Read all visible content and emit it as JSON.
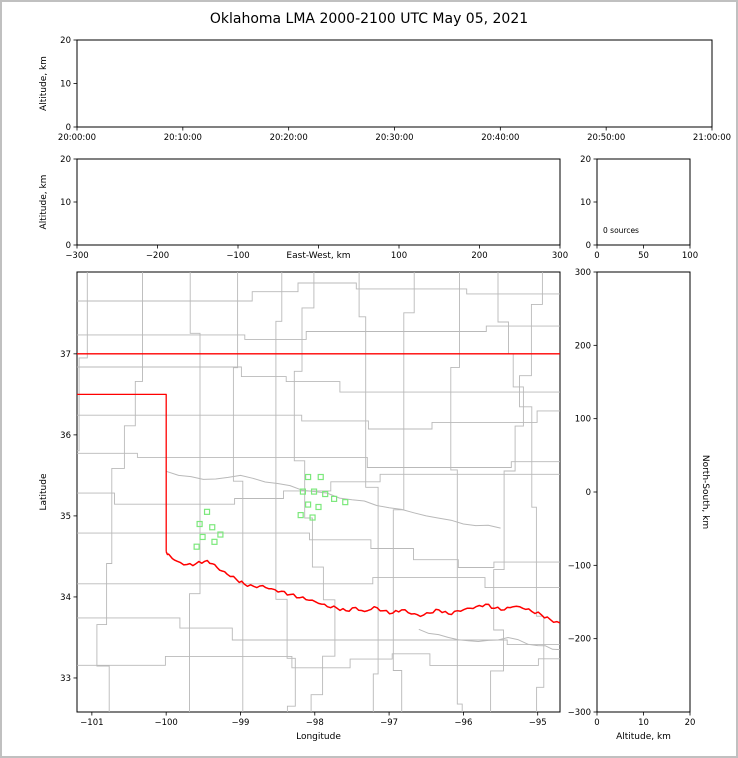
{
  "title": "Oklahoma LMA 2000-2100 UTC May 05, 2021",
  "colors": {
    "axis": "#000000",
    "state_border": "#ff0000",
    "county_line": "#b9b9b9",
    "station": "#7ce87c",
    "background": "#ffffff",
    "frame": "#c0c0c0"
  },
  "chart_data": [
    {
      "id": "time_height",
      "type": "scatter",
      "ylabel": "Altitude, km",
      "ylim": [
        0,
        20
      ],
      "yticks": [
        0,
        10,
        20
      ],
      "ytick_labels": [
        "0",
        "10",
        "20"
      ],
      "xtick_labels": [
        "20:00:00",
        "20:10:00",
        "20:20:00",
        "20:30:00",
        "20:40:00",
        "20:50:00",
        "21:00:00"
      ],
      "points": []
    },
    {
      "id": "ew_height",
      "type": "scatter",
      "ylabel": "Altitude, km",
      "xlabel": "East-West, km",
      "ylim": [
        0,
        20
      ],
      "yticks": [
        0,
        10,
        20
      ],
      "ytick_labels": [
        "0",
        "10",
        "20"
      ],
      "xlim": [
        -300,
        300
      ],
      "xticks": [
        -300,
        -200,
        -100,
        0,
        100,
        200,
        300
      ],
      "xtick_labels": [
        "−300",
        "−200",
        "−100",
        "",
        "100",
        "200",
        "300"
      ],
      "points": []
    },
    {
      "id": "histogram",
      "type": "line",
      "annotation": "0 sources",
      "ylim": [
        0,
        20
      ],
      "yticks": [
        0,
        10,
        20
      ],
      "ytick_labels": [
        "0",
        "10",
        "20"
      ],
      "xlim": [
        0,
        100
      ],
      "xticks": [
        0,
        50,
        100
      ],
      "xtick_labels": [
        "0",
        "50",
        "100"
      ],
      "points": []
    },
    {
      "id": "map",
      "type": "scatter",
      "xlabel": "Longitude",
      "ylabel": "Latitude",
      "xlim": [
        -101.2,
        -94.7
      ],
      "xticks": [
        -101,
        -100,
        -99,
        -98,
        -97,
        -96,
        -95
      ],
      "xtick_labels": [
        "−101",
        "−100",
        "−99",
        "−98",
        "−97",
        "−96",
        "−95"
      ],
      "ylim": [
        32.58,
        38.01
      ],
      "yticks": [
        33,
        34,
        35,
        36,
        37
      ],
      "ytick_labels": [
        "33",
        "34",
        "35",
        "36",
        "37"
      ],
      "stations": [
        [
          -98.09,
          35.48
        ],
        [
          -97.92,
          35.48
        ],
        [
          -98.16,
          35.3
        ],
        [
          -98.01,
          35.3
        ],
        [
          -97.86,
          35.27
        ],
        [
          -98.09,
          35.14
        ],
        [
          -97.95,
          35.11
        ],
        [
          -98.19,
          35.01
        ],
        [
          -98.03,
          34.98
        ],
        [
          -97.74,
          35.21
        ],
        [
          -97.59,
          35.17
        ],
        [
          -99.45,
          35.05
        ],
        [
          -99.55,
          34.9
        ],
        [
          -99.38,
          34.86
        ],
        [
          -99.51,
          34.74
        ],
        [
          -99.35,
          34.68
        ],
        [
          -99.59,
          34.62
        ],
        [
          -99.27,
          34.77
        ]
      ],
      "state_borders": [
        [
          [
            -101.2,
            37.0
          ],
          [
            -94.7,
            37.0
          ]
        ],
        [
          [
            -101.2,
            36.5
          ],
          [
            -100.0,
            36.5
          ],
          [
            -100.0,
            34.56
          ]
        ]
      ],
      "river_border": [
        [
          -100.0,
          34.56
        ],
        [
          -99.95,
          34.51
        ],
        [
          -99.85,
          34.44
        ],
        [
          -99.72,
          34.4
        ],
        [
          -99.6,
          34.41
        ],
        [
          -99.48,
          34.44
        ],
        [
          -99.38,
          34.41
        ],
        [
          -99.28,
          34.33
        ],
        [
          -99.18,
          34.28
        ],
        [
          -99.05,
          34.21
        ],
        [
          -98.95,
          34.16
        ],
        [
          -98.82,
          34.13
        ],
        [
          -98.7,
          34.14
        ],
        [
          -98.58,
          34.1
        ],
        [
          -98.45,
          34.07
        ],
        [
          -98.33,
          34.03
        ],
        [
          -98.2,
          33.99
        ],
        [
          -98.08,
          33.96
        ],
        [
          -97.95,
          33.92
        ],
        [
          -97.83,
          33.88
        ],
        [
          -97.7,
          33.86
        ],
        [
          -97.58,
          33.83
        ],
        [
          -97.45,
          33.87
        ],
        [
          -97.33,
          33.82
        ],
        [
          -97.2,
          33.88
        ],
        [
          -97.08,
          33.83
        ],
        [
          -96.95,
          33.8
        ],
        [
          -96.83,
          33.84
        ],
        [
          -96.7,
          33.79
        ],
        [
          -96.58,
          33.76
        ],
        [
          -96.45,
          33.8
        ],
        [
          -96.33,
          33.84
        ],
        [
          -96.2,
          33.79
        ],
        [
          -96.08,
          33.83
        ],
        [
          -95.95,
          33.86
        ],
        [
          -95.83,
          33.88
        ],
        [
          -95.7,
          33.91
        ],
        [
          -95.58,
          33.86
        ],
        [
          -95.45,
          33.84
        ],
        [
          -95.33,
          33.88
        ],
        [
          -95.2,
          33.86
        ],
        [
          -95.08,
          33.82
        ],
        [
          -94.95,
          33.78
        ],
        [
          -94.83,
          33.72
        ],
        [
          -94.7,
          33.68
        ]
      ],
      "gray_rivers": [
        [
          [
            -100.0,
            35.55
          ],
          [
            -99.5,
            35.45
          ],
          [
            -99.0,
            35.5
          ],
          [
            -98.5,
            35.4
          ],
          [
            -98.0,
            35.3
          ],
          [
            -97.5,
            35.2
          ],
          [
            -97.0,
            35.1
          ],
          [
            -96.5,
            35.0
          ],
          [
            -96.0,
            34.9
          ],
          [
            -95.5,
            34.85
          ]
        ],
        [
          [
            -96.6,
            33.6
          ],
          [
            -96.2,
            33.5
          ],
          [
            -95.8,
            33.45
          ],
          [
            -95.4,
            33.5
          ],
          [
            -95.0,
            33.4
          ],
          [
            -94.7,
            33.35
          ]
        ]
      ]
    },
    {
      "id": "ns_height",
      "type": "scatter",
      "xlabel": "Altitude, km",
      "ylabel_right": "North-South, km",
      "xlim": [
        0,
        20
      ],
      "xticks": [
        0,
        10,
        20
      ],
      "xtick_labels": [
        "0",
        "10",
        "20"
      ],
      "ylim": [
        -300,
        300
      ],
      "yticks": [
        300,
        200,
        100,
        0,
        -100,
        -200,
        -300
      ],
      "ytick_labels": [
        "300",
        "200",
        "100",
        "0",
        "−100",
        "−200",
        "−300"
      ],
      "points": []
    }
  ]
}
